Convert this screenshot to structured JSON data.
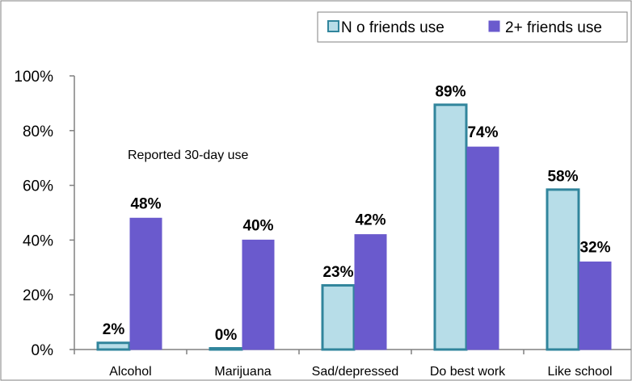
{
  "chart_data": {
    "type": "bar",
    "categories": [
      "Alcohol",
      "Marijuana",
      "Sad/depressed",
      "Do best work",
      "Like school"
    ],
    "series": [
      {
        "name": "N o friends use",
        "values": [
          2,
          0,
          23,
          89,
          58
        ],
        "labels": [
          "2%",
          "0%",
          "23%",
          "89%",
          "58%"
        ],
        "fill": "#b7dde8",
        "stroke": "#31859c"
      },
      {
        "name": "2+ friends use",
        "values": [
          48,
          40,
          42,
          74,
          32
        ],
        "labels": [
          "48%",
          "40%",
          "42%",
          "74%",
          "32%"
        ],
        "fill": "#6a5acd",
        "stroke": "#6a5acd"
      }
    ],
    "ylim": [
      0,
      100
    ],
    "yticks": [
      0,
      20,
      40,
      60,
      80,
      100
    ],
    "ytick_labels": [
      "0%",
      "20%",
      "40%",
      "60%",
      "80%",
      "100%"
    ],
    "annotation": "Reported 30-day use",
    "legend_position": "top-right",
    "grid": false
  }
}
